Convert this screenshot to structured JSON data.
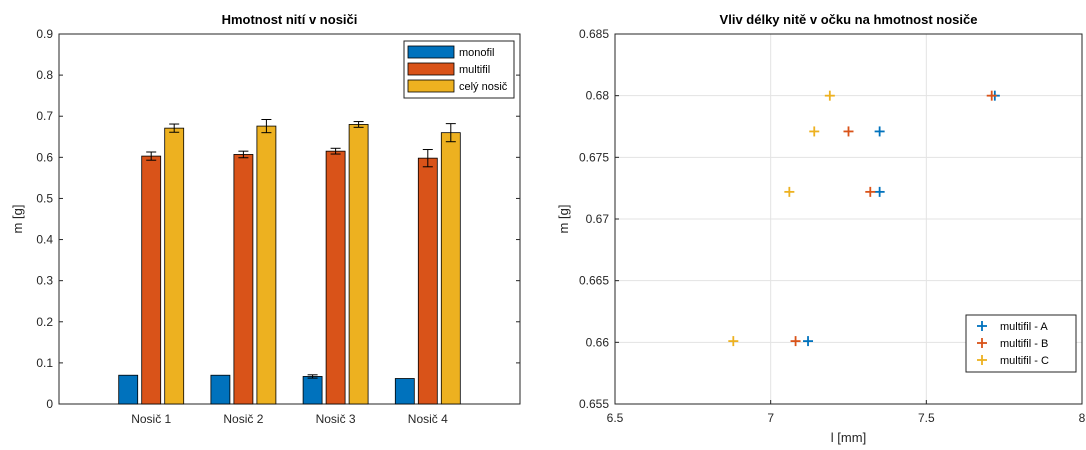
{
  "colors": {
    "monofil": "#0072BD",
    "multifil": "#D95319",
    "cely": "#EDB120"
  },
  "chart_data": [
    {
      "type": "bar",
      "title": "Hmotnost nití v nosiči",
      "xlabel": "",
      "ylabel": "m [g]",
      "categories": [
        "Nosič 1",
        "Nosič 2",
        "Nosič 3",
        "Nosič 4"
      ],
      "ylim": [
        0,
        0.9
      ],
      "yticks": [
        "0",
        "0.1",
        "0.2",
        "0.3",
        "0.4",
        "0.5",
        "0.6",
        "0.7",
        "0.8",
        "0.9"
      ],
      "grid": false,
      "legend_position": "top-right",
      "series": [
        {
          "name": "monofil",
          "values": [
            0.07,
            0.07,
            0.067,
            0.062
          ],
          "errors": [
            0.0,
            0.0,
            0.004,
            0.0
          ]
        },
        {
          "name": "multifil",
          "values": [
            0.603,
            0.607,
            0.615,
            0.598
          ],
          "errors": [
            0.01,
            0.008,
            0.007,
            0.021
          ]
        },
        {
          "name": "celý nosič",
          "values": [
            0.671,
            0.676,
            0.68,
            0.66
          ],
          "errors": [
            0.01,
            0.016,
            0.007,
            0.022
          ]
        }
      ]
    },
    {
      "type": "scatter",
      "title": "Vliv délky nitě v očku na hmotnost nosiče",
      "xlabel": "l [mm]",
      "ylabel": "m [g]",
      "xlim": [
        6.5,
        8
      ],
      "ylim": [
        0.655,
        0.685
      ],
      "xticks": [
        "6.5",
        "7",
        "7.5",
        "8"
      ],
      "yticks": [
        "0.655",
        "0.66",
        "0.665",
        "0.67",
        "0.675",
        "0.68",
        "0.685"
      ],
      "grid": true,
      "legend_position": "bottom-right",
      "series": [
        {
          "name": "multifil - A",
          "points": [
            [
              7.72,
              0.68
            ],
            [
              7.35,
              0.6771
            ],
            [
              7.35,
              0.6722
            ],
            [
              7.12,
              0.6601
            ]
          ]
        },
        {
          "name": "multifil - B",
          "points": [
            [
              7.71,
              0.68
            ],
            [
              7.25,
              0.6771
            ],
            [
              7.32,
              0.6722
            ],
            [
              7.08,
              0.6601
            ]
          ]
        },
        {
          "name": "multifil - C",
          "points": [
            [
              7.19,
              0.68
            ],
            [
              7.14,
              0.6771
            ],
            [
              7.06,
              0.6722
            ],
            [
              6.88,
              0.6601
            ]
          ]
        }
      ]
    }
  ]
}
